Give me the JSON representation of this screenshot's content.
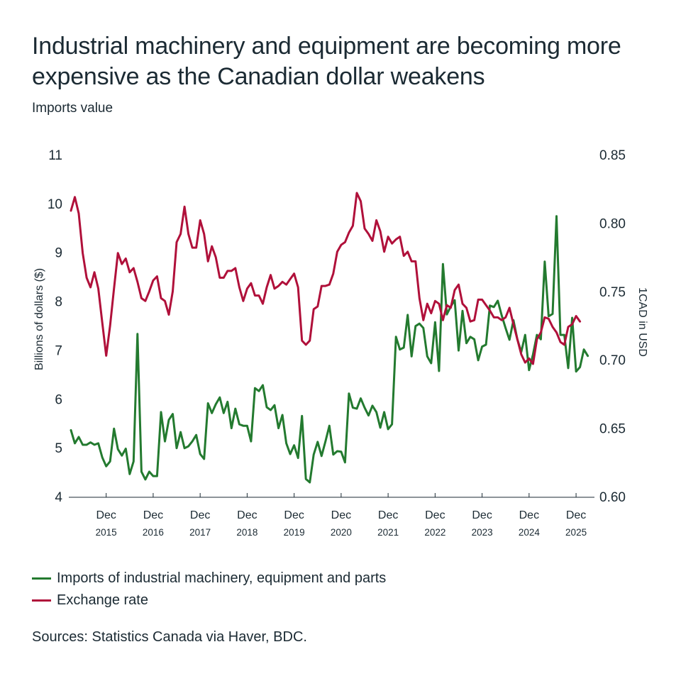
{
  "header": {
    "title": "Industrial machinery and equipment are becoming more expensive as the Canadian dollar weakens",
    "subtitle": "Imports value"
  },
  "colors": {
    "imports": "#237a2f",
    "exchange": "#b0103a",
    "text": "#1b2a33",
    "axis": "#1b2a33"
  },
  "chart_data": {
    "type": "line",
    "title": "Industrial machinery and equipment are becoming more expensive as the Canadian dollar weakens",
    "subtitle": "Imports value",
    "x_start": "2015-03",
    "x_frequency": "monthly",
    "x_ticks": [
      {
        "month_index": 9,
        "line1": "Dec",
        "line2": "2015"
      },
      {
        "month_index": 21,
        "line1": "Dec",
        "line2": "2016"
      },
      {
        "month_index": 33,
        "line1": "Dec",
        "line2": "2017"
      },
      {
        "month_index": 45,
        "line1": "Dec",
        "line2": "2018"
      },
      {
        "month_index": 57,
        "line1": "Dec",
        "line2": "2019"
      },
      {
        "month_index": 69,
        "line1": "Dec",
        "line2": "2020"
      },
      {
        "month_index": 81,
        "line1": "Dec",
        "line2": "2021"
      },
      {
        "month_index": 93,
        "line1": "Dec",
        "line2": "2022"
      },
      {
        "month_index": 105,
        "line1": "Dec",
        "line2": "2023"
      },
      {
        "month_index": 117,
        "line1": "Dec",
        "line2": "2024"
      },
      {
        "month_index": 129,
        "line1": "Dec",
        "line2": "2025"
      }
    ],
    "x_range_months": [
      0,
      133
    ],
    "y_left": {
      "label": "Billions of dollars ($)",
      "range": [
        4,
        11
      ],
      "ticks": [
        "4",
        "5",
        "6",
        "7",
        "8",
        "9",
        "10",
        "11"
      ],
      "tick_values": [
        4,
        5,
        6,
        7,
        8,
        9,
        10,
        11
      ]
    },
    "y_right": {
      "label": "1CAD in USD",
      "range": [
        0.6,
        0.85
      ],
      "ticks": [
        "0.60",
        "0.65",
        "0.70",
        "0.75",
        "0.80",
        "0.85"
      ],
      "tick_values": [
        0.6,
        0.65,
        0.7,
        0.75,
        0.8,
        0.85
      ]
    },
    "grid": false,
    "legend_position": "bottom-left",
    "series": [
      {
        "name": "Imports of industrial machinery, equipment and parts",
        "axis": "left",
        "color": "#237a2f",
        "values": [
          5.36,
          5.09,
          5.22,
          5.06,
          5.06,
          5.11,
          5.06,
          5.09,
          4.8,
          4.62,
          4.72,
          5.39,
          4.97,
          4.84,
          4.98,
          4.46,
          4.72,
          7.33,
          4.51,
          4.35,
          4.51,
          4.42,
          4.42,
          5.73,
          5.13,
          5.57,
          5.69,
          4.99,
          5.32,
          4.99,
          5.03,
          5.13,
          5.26,
          4.87,
          4.77,
          5.91,
          5.71,
          5.89,
          6.03,
          5.71,
          5.94,
          5.4,
          5.8,
          5.48,
          5.45,
          5.45,
          5.13,
          6.22,
          6.16,
          6.28,
          5.83,
          5.77,
          5.87,
          5.4,
          5.67,
          5.09,
          4.87,
          5.05,
          4.79,
          5.65,
          4.36,
          4.29,
          4.86,
          5.12,
          4.83,
          5.13,
          5.45,
          4.86,
          4.93,
          4.92,
          4.7,
          6.11,
          5.82,
          5.8,
          6.01,
          5.82,
          5.66,
          5.86,
          5.73,
          5.41,
          5.73,
          5.38,
          5.48,
          7.27,
          7.01,
          7.05,
          7.72,
          6.87,
          7.49,
          7.54,
          7.45,
          6.87,
          6.73,
          7.57,
          6.57,
          8.76,
          7.73,
          7.89,
          8.02,
          6.99,
          7.8,
          7.14,
          7.27,
          7.22,
          6.79,
          7.07,
          7.11,
          7.91,
          7.88,
          8.01,
          7.71,
          7.45,
          7.21,
          7.61,
          7.22,
          6.96,
          7.31,
          6.59,
          6.91,
          7.31,
          7.22,
          8.81,
          7.69,
          7.74,
          9.74,
          7.31,
          7.31,
          6.63,
          7.66,
          6.56,
          6.65,
          7.01,
          6.88
        ]
      },
      {
        "name": "Exchange rate",
        "axis": "right",
        "color": "#b0103a",
        "values": [
          0.809,
          0.819,
          0.807,
          0.778,
          0.76,
          0.753,
          0.764,
          0.752,
          0.727,
          0.703,
          0.725,
          0.752,
          0.778,
          0.77,
          0.774,
          0.764,
          0.767,
          0.757,
          0.745,
          0.743,
          0.75,
          0.758,
          0.761,
          0.745,
          0.743,
          0.733,
          0.75,
          0.786,
          0.792,
          0.812,
          0.792,
          0.782,
          0.782,
          0.802,
          0.792,
          0.772,
          0.783,
          0.775,
          0.76,
          0.76,
          0.765,
          0.765,
          0.767,
          0.753,
          0.743,
          0.752,
          0.756,
          0.747,
          0.747,
          0.741,
          0.753,
          0.762,
          0.752,
          0.754,
          0.757,
          0.755,
          0.759,
          0.763,
          0.753,
          0.714,
          0.711,
          0.714,
          0.737,
          0.739,
          0.754,
          0.754,
          0.755,
          0.763,
          0.779,
          0.784,
          0.786,
          0.793,
          0.798,
          0.822,
          0.816,
          0.796,
          0.792,
          0.787,
          0.802,
          0.794,
          0.779,
          0.79,
          0.785,
          0.788,
          0.79,
          0.776,
          0.779,
          0.772,
          0.772,
          0.745,
          0.729,
          0.741,
          0.734,
          0.743,
          0.741,
          0.729,
          0.74,
          0.738,
          0.751,
          0.755,
          0.741,
          0.738,
          0.728,
          0.729,
          0.744,
          0.744,
          0.74,
          0.736,
          0.731,
          0.731,
          0.729,
          0.731,
          0.738,
          0.726,
          0.715,
          0.704,
          0.698,
          0.701,
          0.697,
          0.715,
          0.72,
          0.731,
          0.73,
          0.724,
          0.72,
          0.713,
          0.711,
          0.724,
          0.726,
          0.732,
          0.728
        ]
      }
    ]
  },
  "legend": {
    "items": [
      {
        "label": "Imports of industrial machinery, equipment and parts",
        "color": "#237a2f"
      },
      {
        "label": "Exchange rate",
        "color": "#b0103a"
      }
    ]
  },
  "footer": {
    "source": "Sources: Statistics Canada via Haver, BDC."
  }
}
